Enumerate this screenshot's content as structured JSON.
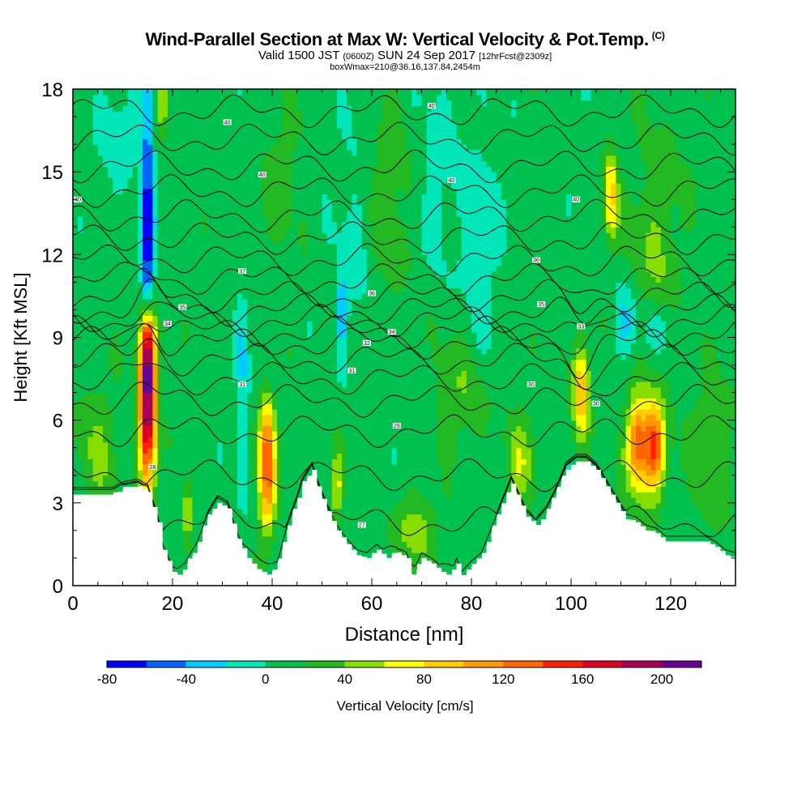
{
  "chart_data": {
    "type": "heatmap",
    "title": "Wind-Parallel Section at Max W: Vertical Velocity & Pot.Temp.",
    "title_mark": "(C)",
    "subtitle": {
      "pre": "Valid 1500 JST ",
      "utc": "(0600Z)",
      "mid": " SUN 24 Sep 2017 ",
      "fcst": "[12hrFcst@2309z]"
    },
    "subtitle2": "boxWmax=210@36.16,137.84,2454m",
    "xlabel": "Distance [nm]",
    "ylabel": "Height [Kft MSL]",
    "xlim": [
      0,
      133
    ],
    "ylim": [
      0,
      18
    ],
    "xticks": [
      0,
      20,
      40,
      60,
      80,
      100,
      120
    ],
    "yticks": [
      0,
      3,
      6,
      9,
      12,
      15,
      18
    ],
    "x_minor_step": 5,
    "y_minor_step": 1,
    "colorbar": {
      "label": "Vertical Velocity [cm/s]",
      "bounds": [
        -80,
        220
      ],
      "step": 20,
      "tick_labels": [
        -80,
        -40,
        0,
        40,
        80,
        120,
        160,
        200
      ],
      "colors": [
        "#0000ff",
        "#0066ff",
        "#00ccff",
        "#00e6b8",
        "#00c050",
        "#22b922",
        "#88dd00",
        "#ffff00",
        "#ffcc00",
        "#ff9900",
        "#ff6600",
        "#ff2200",
        "#dd0022",
        "#aa0055",
        "#660099"
      ]
    },
    "background_w": 10,
    "terrain_kft": [
      [
        0,
        3.3
      ],
      [
        4,
        3.3
      ],
      [
        8,
        3.3
      ],
      [
        10,
        3.5
      ],
      [
        13,
        3.6
      ],
      [
        15,
        3.4
      ],
      [
        17,
        2.3
      ],
      [
        18,
        1.3
      ],
      [
        20,
        0.5
      ],
      [
        22,
        0.3
      ],
      [
        23,
        0.8
      ],
      [
        25,
        1.4
      ],
      [
        27,
        2.4
      ],
      [
        29,
        3.0
      ],
      [
        31,
        2.8
      ],
      [
        33,
        1.7
      ],
      [
        35,
        1.0
      ],
      [
        37,
        0.6
      ],
      [
        39,
        0.4
      ],
      [
        41,
        0.6
      ],
      [
        43,
        2.0
      ],
      [
        45,
        3.0
      ],
      [
        46,
        3.6
      ],
      [
        48,
        4.2
      ],
      [
        49,
        3.6
      ],
      [
        51,
        2.7
      ],
      [
        53,
        2.0
      ],
      [
        55,
        1.5
      ],
      [
        57,
        1.1
      ],
      [
        59,
        1.0
      ],
      [
        61,
        1.3
      ],
      [
        63,
        1.0
      ],
      [
        65,
        1.2
      ],
      [
        67,
        1.0
      ],
      [
        68,
        0.4
      ],
      [
        69,
        0.6
      ],
      [
        70,
        1.0
      ],
      [
        72,
        0.8
      ],
      [
        74,
        0.5
      ],
      [
        76,
        0.3
      ],
      [
        77,
        0.8
      ],
      [
        78,
        0.3
      ],
      [
        80,
        0.7
      ],
      [
        82,
        1.0
      ],
      [
        84,
        1.9
      ],
      [
        86,
        2.8
      ],
      [
        88,
        3.7
      ],
      [
        89,
        3.3
      ],
      [
        91,
        2.5
      ],
      [
        93,
        2.2
      ],
      [
        95,
        2.6
      ],
      [
        97,
        3.3
      ],
      [
        99,
        4.2
      ],
      [
        101,
        4.5
      ],
      [
        103,
        4.5
      ],
      [
        105,
        4.2
      ],
      [
        107,
        3.6
      ],
      [
        109,
        3.0
      ],
      [
        111,
        2.4
      ],
      [
        113,
        2.3
      ],
      [
        115,
        2.0
      ],
      [
        117,
        1.9
      ],
      [
        119,
        1.6
      ],
      [
        121,
        1.6
      ],
      [
        123,
        1.6
      ],
      [
        125,
        1.6
      ],
      [
        127,
        1.6
      ],
      [
        129,
        1.4
      ],
      [
        131,
        1.1
      ],
      [
        133,
        1.0
      ]
    ],
    "updraft_cores": [
      {
        "x": 15,
        "y": 6.5,
        "w": 200,
        "sx": 1.2,
        "sy": 2.2
      },
      {
        "x": 15,
        "y": 8.8,
        "w": 100,
        "sx": 1.0,
        "sy": 1.0
      },
      {
        "x": 39,
        "y": 3.8,
        "w": 110,
        "sx": 1.3,
        "sy": 1.4
      },
      {
        "x": 39,
        "y": 5.8,
        "w": 55,
        "sx": 1.2,
        "sy": 1.0
      },
      {
        "x": 102,
        "y": 7.1,
        "w": 95,
        "sx": 1.2,
        "sy": 1.2
      },
      {
        "x": 115,
        "y": 5.0,
        "w": 95,
        "sx": 2.5,
        "sy": 1.3
      },
      {
        "x": 113,
        "y": 5.2,
        "w": 60,
        "sx": 1.2,
        "sy": 1.0
      },
      {
        "x": 117,
        "y": 5.0,
        "w": 60,
        "sx": 1.2,
        "sy": 1.0
      },
      {
        "x": 108,
        "y": 14.2,
        "w": 75,
        "sx": 1.0,
        "sy": 1.2
      },
      {
        "x": 18,
        "y": 17.6,
        "w": 55,
        "sx": 1.0,
        "sy": 0.8
      },
      {
        "x": 90,
        "y": 4.5,
        "w": 45,
        "sx": 2.0,
        "sy": 1.3
      },
      {
        "x": 53,
        "y": 3.6,
        "w": 60,
        "sx": 0.8,
        "sy": 0.9
      },
      {
        "x": 69,
        "y": 2.0,
        "w": 40,
        "sx": 3.0,
        "sy": 1.0
      },
      {
        "x": 23,
        "y": 2.6,
        "w": 55,
        "sx": 0.7,
        "sy": 0.8
      },
      {
        "x": 5,
        "y": 5.0,
        "w": 30,
        "sx": 3.0,
        "sy": 1.8
      },
      {
        "x": 128,
        "y": 5.0,
        "w": 30,
        "sx": 3.0,
        "sy": 2.0
      },
      {
        "x": 62,
        "y": 14.0,
        "w": 28,
        "sx": 4.0,
        "sy": 2.5
      },
      {
        "x": 117,
        "y": 12.0,
        "w": 30,
        "sx": 4.0,
        "sy": 3.0
      },
      {
        "x": 42,
        "y": 15.0,
        "w": 20,
        "sx": 3.0,
        "sy": 2.0
      },
      {
        "x": 78,
        "y": 7.0,
        "w": 30,
        "sx": 4.0,
        "sy": 1.5
      }
    ],
    "downdraft_cores": [
      {
        "x": 15,
        "y": 14.2,
        "w": -70,
        "sx": 0.9,
        "sy": 3.8
      },
      {
        "x": 15,
        "y": 11.0,
        "w": -45,
        "sx": 1.0,
        "sy": 1.5
      },
      {
        "x": 34,
        "y": 7.0,
        "w": -30,
        "sx": 1.0,
        "sy": 3.0
      },
      {
        "x": 54,
        "y": 10.0,
        "w": -50,
        "sx": 0.6,
        "sy": 0.9
      },
      {
        "x": 57,
        "y": 13.0,
        "w": -25,
        "sx": 3.0,
        "sy": 3.0
      },
      {
        "x": 9,
        "y": 16.5,
        "w": -20,
        "sx": 3.0,
        "sy": 1.5
      },
      {
        "x": 111,
        "y": 9.6,
        "w": -35,
        "sx": 1.5,
        "sy": 1.0
      },
      {
        "x": 118,
        "y": 9.3,
        "w": -30,
        "sx": 4.0,
        "sy": 0.8
      },
      {
        "x": 82,
        "y": 12.0,
        "w": -20,
        "sx": 3.0,
        "sy": 3.5
      },
      {
        "x": 73,
        "y": 15.0,
        "w": -18,
        "sx": 3.0,
        "sy": 2.5
      }
    ],
    "theta_contour_labels": [
      {
        "x": 1,
        "y": 14.0,
        "text": "40"
      },
      {
        "x": 31,
        "y": 16.8,
        "text": "40"
      },
      {
        "x": 38,
        "y": 14.9,
        "text": "40"
      },
      {
        "x": 72,
        "y": 17.4,
        "text": "40"
      },
      {
        "x": 76,
        "y": 14.7,
        "text": "40"
      },
      {
        "x": 101,
        "y": 14.0,
        "text": "40"
      },
      {
        "x": 34,
        "y": 11.4,
        "text": "37"
      },
      {
        "x": 93,
        "y": 11.8,
        "text": "36"
      },
      {
        "x": 60,
        "y": 10.6,
        "text": "36"
      },
      {
        "x": 22,
        "y": 10.1,
        "text": "35"
      },
      {
        "x": 94,
        "y": 10.2,
        "text": "35"
      },
      {
        "x": 19,
        "y": 9.5,
        "text": "34"
      },
      {
        "x": 64,
        "y": 9.2,
        "text": "34"
      },
      {
        "x": 102,
        "y": 9.4,
        "text": "33"
      },
      {
        "x": 59,
        "y": 8.8,
        "text": "32"
      },
      {
        "x": 56,
        "y": 7.8,
        "text": "31"
      },
      {
        "x": 34,
        "y": 7.3,
        "text": "31"
      },
      {
        "x": 92,
        "y": 7.3,
        "text": "30"
      },
      {
        "x": 105,
        "y": 6.6,
        "text": "30"
      },
      {
        "x": 65,
        "y": 5.8,
        "text": "29"
      },
      {
        "x": 16,
        "y": 4.3,
        "text": "28"
      },
      {
        "x": 58,
        "y": 2.2,
        "text": "27"
      }
    ],
    "theta_contour_levels_kft": [
      0.9,
      2.3,
      4.0,
      5.6,
      6.7,
      7.5,
      8.2,
      8.8,
      9.2,
      9.6,
      10.0,
      10.5,
      11.1,
      11.8,
      12.6,
      13.4,
      14.3,
      15.2,
      16.2,
      17.2
    ]
  }
}
